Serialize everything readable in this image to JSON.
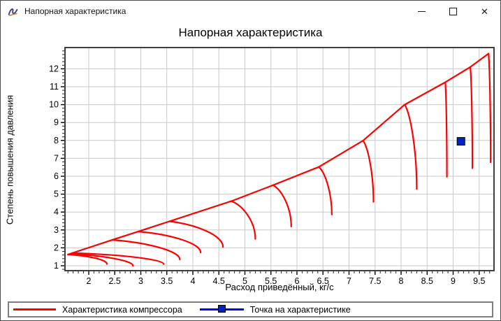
{
  "window": {
    "title": "Напорная характеристика",
    "controls": [
      {
        "name": "minimize"
      },
      {
        "name": "maximize"
      },
      {
        "name": "close"
      }
    ]
  },
  "chart_data": {
    "type": "line",
    "title": "Напорная характеристика",
    "xlabel": "Расход приведённый, кг/с",
    "ylabel": "Степень повышения давления",
    "xlim": [
      1.544,
      9.785
    ],
    "ylim": [
      0.727,
      13.187
    ],
    "x_ticks": [
      2,
      2.5,
      3,
      3.5,
      4,
      4.5,
      5,
      5.5,
      6,
      6.5,
      7,
      7.5,
      8,
      8.5,
      9,
      9.5
    ],
    "x_minor_step": 0.1,
    "y_ticks": [
      1,
      2,
      3,
      4,
      5,
      6,
      7,
      8,
      9,
      10,
      11,
      12
    ],
    "y_minor_step": 0.2,
    "grid": true,
    "grid_color": "#c9c9c9",
    "border_color": "#3f3f3f",
    "legend_position": "bottom",
    "series": [
      {
        "name": "Характеристика компрессора",
        "color": "#ff0000",
        "line_width": 2.2,
        "surge_line": [
          [
            1.6,
            1.63
          ],
          [
            2.45,
            2.44
          ],
          [
            2.95,
            2.91
          ],
          [
            3.55,
            3.48
          ],
          [
            4.74,
            4.61
          ],
          [
            5.54,
            5.5
          ],
          [
            6.42,
            6.52
          ],
          [
            7.27,
            7.99
          ],
          [
            8.07,
            10.0
          ],
          [
            8.85,
            11.25
          ],
          [
            9.33,
            12.1
          ],
          [
            9.68,
            12.85
          ]
        ],
        "speed_lines": [
          {
            "from": [
              1.6,
              1.63
            ],
            "to": [
              2.35,
              1.1
            ]
          },
          {
            "from": [
              1.63,
              1.66
            ],
            "to": [
              2.85,
              1.0
            ]
          },
          {
            "from": [
              1.68,
              1.71
            ],
            "to": [
              3.44,
              1.09
            ]
          },
          {
            "from": [
              2.45,
              2.44
            ],
            "to": [
              3.75,
              1.35
            ]
          },
          {
            "from": [
              2.95,
              2.91
            ],
            "to": [
              4.15,
              1.74
            ]
          },
          {
            "from": [
              3.55,
              3.48
            ],
            "to": [
              4.58,
              2.05
            ]
          },
          {
            "from": [
              4.74,
              4.61
            ],
            "to": [
              5.2,
              2.5
            ]
          },
          {
            "from": [
              5.54,
              5.5
            ],
            "to": [
              5.89,
              3.19
            ]
          },
          {
            "from": [
              6.42,
              6.52
            ],
            "to": [
              6.67,
              3.86
            ]
          },
          {
            "from": [
              7.27,
              7.99
            ],
            "to": [
              7.47,
              4.57
            ]
          },
          {
            "from": [
              8.07,
              10.0
            ],
            "to": [
              8.3,
              5.29
            ]
          },
          {
            "from": [
              8.85,
              11.25
            ],
            "to": [
              8.88,
              5.97
            ]
          },
          {
            "from": [
              9.33,
              12.1
            ],
            "to": [
              9.37,
              6.45
            ]
          },
          {
            "from": [
              9.68,
              12.85
            ],
            "to": [
              9.72,
              6.78
            ]
          }
        ]
      },
      {
        "name": "Точка на характеристике",
        "color": "#0000ff",
        "marker": "square",
        "marker_fill": "#0022cc",
        "marker_border": "#000000",
        "points": [
          [
            9.15,
            7.95
          ]
        ]
      }
    ]
  }
}
